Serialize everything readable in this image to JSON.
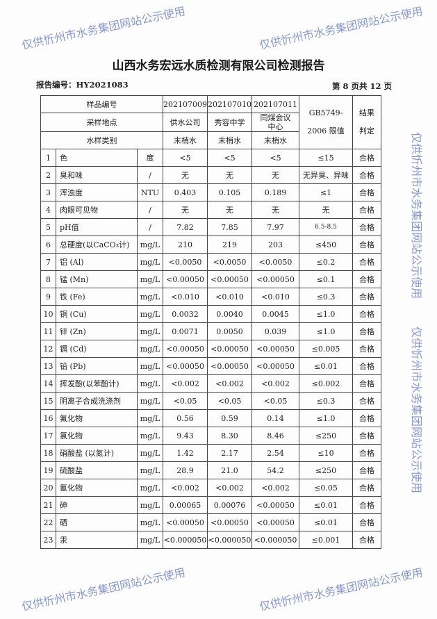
{
  "title": "山西水务宏远水质检测有限公司检测报告",
  "report_no": "报告编号：HY2021083",
  "page_no": "第 8 页共 12 页",
  "watermark": "仅供忻州市水务集团网站公示使用",
  "header": {
    "sample_no_label": "样品编号",
    "sample_nos": [
      "202107009",
      "202107010",
      "202107011"
    ],
    "location_label": "采样地点",
    "locations": [
      "供水公司",
      "秀容中学",
      "同煤会议中心"
    ],
    "type_label": "水样类别",
    "types": [
      "末梢水",
      "末梢水",
      "末梢水"
    ],
    "limit_label": "GB5749-2006 限值",
    "result_label": "结果判定"
  },
  "rows": [
    {
      "no": "1",
      "name": "色",
      "unit": "度",
      "v": [
        "<5",
        "<5",
        "<5"
      ],
      "limit": "≤15",
      "result": "合格"
    },
    {
      "no": "2",
      "name": "臭和味",
      "unit": "/",
      "v": [
        "无",
        "无",
        "无"
      ],
      "limit": "无异臭、异味",
      "result": "合格"
    },
    {
      "no": "3",
      "name": "浑浊度",
      "unit": "NTU",
      "v": [
        "0.403",
        "0.105",
        "0.189"
      ],
      "limit": "≤1",
      "result": "合格"
    },
    {
      "no": "4",
      "name": "肉眼可见物",
      "unit": "/",
      "v": [
        "无",
        "无",
        "无"
      ],
      "limit": "无",
      "result": "合格"
    },
    {
      "no": "5",
      "name": "pH值",
      "unit": "/",
      "v": [
        "7.82",
        "7.85",
        "7.97"
      ],
      "limit": "6.5-8.5",
      "result": "合格"
    },
    {
      "no": "6",
      "name": "总硬度(以CaCO₃计)",
      "unit": "mg/L",
      "v": [
        "210",
        "219",
        "203"
      ],
      "limit": "≤450",
      "result": "合格"
    },
    {
      "no": "7",
      "name": "铝 (Al)",
      "unit": "mg/L",
      "v": [
        "<0.0050",
        "<0.0050",
        "<0.0050"
      ],
      "limit": "≤0.2",
      "result": "合格"
    },
    {
      "no": "8",
      "name": "锰 (Mn)",
      "unit": "mg/L",
      "v": [
        "<0.00050",
        "<0.00050",
        "<0.00050"
      ],
      "limit": "≤0.1",
      "result": "合格"
    },
    {
      "no": "9",
      "name": "铁 (Fe)",
      "unit": "mg/L",
      "v": [
        "<0.010",
        "<0.010",
        "<0.010"
      ],
      "limit": "≤0.3",
      "result": "合格"
    },
    {
      "no": "10",
      "name": "铜 (Cu)",
      "unit": "mg/L",
      "v": [
        "0.0032",
        "0.0040",
        "0.0045"
      ],
      "limit": "≤1.0",
      "result": "合格"
    },
    {
      "no": "11",
      "name": "锌 (Zn)",
      "unit": "mg/L",
      "v": [
        "0.0071",
        "0.0050",
        "0.039"
      ],
      "limit": "≤1.0",
      "result": "合格"
    },
    {
      "no": "12",
      "name": "镉 (Cd)",
      "unit": "mg/L",
      "v": [
        "<0.00050",
        "<0.00050",
        "<0.00050"
      ],
      "limit": "≤0.005",
      "result": "合格"
    },
    {
      "no": "13",
      "name": "铅 (Pb)",
      "unit": "mg/L",
      "v": [
        "<0.00050",
        "<0.00050",
        "<0.00050"
      ],
      "limit": "≤0.01",
      "result": "合格"
    },
    {
      "no": "14",
      "name": "挥发酚(以苯酚计)",
      "unit": "mg/L",
      "v": [
        "<0.002",
        "<0.002",
        "<0.002"
      ],
      "limit": "≤0.002",
      "result": "合格"
    },
    {
      "no": "15",
      "name": "阴离子合成洗涤剂",
      "unit": "mg/L",
      "v": [
        "<0.05",
        "<0.05",
        "<0.05"
      ],
      "limit": "≤0.3",
      "result": "合格"
    },
    {
      "no": "16",
      "name": "氟化物",
      "unit": "mg/L",
      "v": [
        "0.56",
        "0.59",
        "0.14"
      ],
      "limit": "≤1.0",
      "result": "合格"
    },
    {
      "no": "17",
      "name": "氯化物",
      "unit": "mg/L",
      "v": [
        "9.43",
        "8.30",
        "8.46"
      ],
      "limit": "≤250",
      "result": "合格"
    },
    {
      "no": "18",
      "name": "硝酸盐 (以氮计)",
      "unit": "mg/L",
      "v": [
        "1.42",
        "2.17",
        "2.54"
      ],
      "limit": "≤10",
      "result": "合格"
    },
    {
      "no": "19",
      "name": "硫酸盐",
      "unit": "mg/L",
      "v": [
        "28.9",
        "21.0",
        "54.2"
      ],
      "limit": "≤250",
      "result": "合格"
    },
    {
      "no": "20",
      "name": "氰化物",
      "unit": "mg/L",
      "v": [
        "<0.002",
        "<0.002",
        "<0.002"
      ],
      "limit": "≤0.05",
      "result": "合格"
    },
    {
      "no": "21",
      "name": "砷",
      "unit": "mg/L",
      "v": [
        "0.00065",
        "0.00076",
        "<0.00050"
      ],
      "limit": "≤0.01",
      "result": "合格"
    },
    {
      "no": "22",
      "name": "硒",
      "unit": "mg/L",
      "v": [
        "<0.00050",
        "<0.00050",
        "<0.00050"
      ],
      "limit": "≤0.01",
      "result": "合格"
    },
    {
      "no": "23",
      "name": "汞",
      "unit": "mg/L",
      "v": [
        "<0.000050",
        "<0.000050",
        "<0.000050"
      ],
      "limit": "≤0.001",
      "result": "合格"
    }
  ]
}
